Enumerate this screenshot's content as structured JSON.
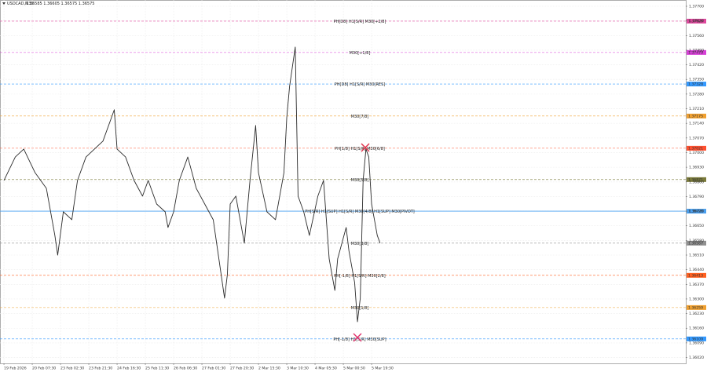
{
  "chart_data": {
    "type": "line",
    "title": "USDCAD,M30",
    "subtitle": "1.36585 1.36605 1.36575 1.36575",
    "color": "#2a2a2a",
    "grid": true,
    "x": [
      0,
      4,
      7,
      11,
      15,
      18,
      19,
      21,
      24,
      26,
      29,
      32,
      35,
      38,
      39,
      40,
      43,
      46,
      49,
      51,
      54,
      57,
      58,
      60,
      62,
      65,
      68,
      71,
      74,
      76,
      78,
      79,
      80,
      82,
      85,
      87,
      89,
      90,
      93,
      96,
      99,
      100,
      101,
      103,
      104,
      106,
      108,
      111,
      113,
      115,
      117,
      118,
      121,
      122,
      124,
      125,
      126,
      127,
      128,
      129,
      130,
      131,
      132,
      133
    ],
    "values": [
      1.36867,
      1.36979,
      1.37017,
      1.36904,
      1.36829,
      1.36604,
      1.3651,
      1.36717,
      1.36679,
      1.36867,
      1.36979,
      1.37017,
      1.37055,
      1.37167,
      1.37205,
      1.37017,
      1.36979,
      1.36867,
      1.36792,
      1.36867,
      1.36754,
      1.36717,
      1.36642,
      1.36717,
      1.36867,
      1.36979,
      1.36829,
      1.36754,
      1.36679,
      1.36492,
      1.36304,
      1.36417,
      1.36754,
      1.36792,
      1.36567,
      1.36867,
      1.3713,
      1.36904,
      1.36717,
      1.36679,
      1.36904,
      1.37167,
      1.37317,
      1.37505,
      1.36792,
      1.36717,
      1.36604,
      1.36792,
      1.36867,
      1.36492,
      1.36341,
      1.36492,
      1.36642,
      1.36529,
      1.36379,
      1.36191,
      1.36304,
      1.36867,
      1.37017,
      1.36979,
      1.36754,
      1.36679,
      1.36604,
      1.36567
    ],
    "xlim": [
      -1.4,
      241.1
    ],
    "xticks": [
      {
        "value": 0,
        "label": "19 Feb 2026"
      },
      {
        "value": 10,
        "label": "20 Feb 07:30"
      },
      {
        "value": 20,
        "label": "23 Feb 02:30"
      },
      {
        "value": 30,
        "label": "23 Feb 21:30"
      },
      {
        "value": 40,
        "label": "24 Feb 16:30"
      },
      {
        "value": 50,
        "label": "25 Feb 11:30"
      },
      {
        "value": 60,
        "label": "26 Feb 06:30"
      },
      {
        "value": 70,
        "label": "27 Feb 01:30"
      },
      {
        "value": 80,
        "label": "27 Feb 20:30"
      },
      {
        "value": 90,
        "label": "2 Mar 15:30"
      },
      {
        "value": 100,
        "label": "3 Mar 10:30"
      },
      {
        "value": 110,
        "label": "4 Mar 05:30"
      },
      {
        "value": 120,
        "label": "5 Mar 00:30"
      },
      {
        "value": 130,
        "label": "5 Mar 19:30"
      }
    ],
    "ylim": [
      1.35992,
      1.3773
    ],
    "yticks": [
      {
        "value": 1.377,
        "label": "1.37700"
      },
      {
        "value": 1.3763,
        "label": "1.37630"
      },
      {
        "value": 1.3756,
        "label": "1.37560"
      },
      {
        "value": 1.3749,
        "label": "1.37490"
      },
      {
        "value": 1.3742,
        "label": "1.37420"
      },
      {
        "value": 1.3735,
        "label": "1.37350"
      },
      {
        "value": 1.3728,
        "label": "1.37280"
      },
      {
        "value": 1.3721,
        "label": "1.37210"
      },
      {
        "value": 1.3714,
        "label": "1.37140"
      },
      {
        "value": 1.3707,
        "label": "1.37070"
      },
      {
        "value": 1.37,
        "label": "1.37000"
      },
      {
        "value": 1.3693,
        "label": "1.36930"
      },
      {
        "value": 1.3686,
        "label": "1.36860"
      },
      {
        "value": 1.3679,
        "label": "1.36790"
      },
      {
        "value": 1.3672,
        "label": "1.36720"
      },
      {
        "value": 1.3665,
        "label": "1.36650"
      },
      {
        "value": 1.3658,
        "label": "1.36580"
      },
      {
        "value": 1.3651,
        "label": "1.36510"
      },
      {
        "value": 1.3644,
        "label": "1.36440"
      },
      {
        "value": 1.3637,
        "label": "1.36370"
      },
      {
        "value": 1.363,
        "label": "1.36300"
      },
      {
        "value": 1.3623,
        "label": "1.36230"
      },
      {
        "value": 1.3616,
        "label": "1.36160"
      },
      {
        "value": 1.3609,
        "label": "1.36090"
      },
      {
        "value": 1.3602,
        "label": "1.36020"
      }
    ],
    "levels": [
      {
        "name": "PH[D8] H1[S/R] M30[+2/8]",
        "color": "#e0479e",
        "value": 1.37629,
        "value_label": "1.37629"
      },
      {
        "name": "M30[+1/8]",
        "color": "#d63fd6",
        "value": 1.37479,
        "value_label": "1.37479"
      },
      {
        "name": "PH[D8] H1[S/R] M30[RES]",
        "color": "#3399ff",
        "value": 1.37328,
        "value_label": "1.37328"
      },
      {
        "name": "M30[7/8]",
        "color": "#f0a030",
        "value": 1.37175,
        "value_label": "1.37175"
      },
      {
        "name": "PH[1/8] H1[S/R] M30[6/8]",
        "color": "#ff5030",
        "value": 1.37021,
        "value_label": "1.37021"
      },
      {
        "name": "M30[5/8]",
        "color": "#7a7a3a",
        "value": 1.36871,
        "value_label": "1.36871"
      },
      {
        "name": "PH[S/R] H1[SUP] H1[S/R] M30[4/8] H1[SUP] M30[PIVOT]",
        "color": "#4aa0f0",
        "value": 1.3672,
        "value_label": "1.36720"
      },
      {
        "name": "M30[3/8]",
        "color": "#909090",
        "value": 1.36567,
        "value_label": "1.36567"
      },
      {
        "name": "PH[-1/8] H1[S/R] M30[2/8]",
        "color": "#ff6020",
        "value": 1.36413,
        "value_label": "1.36413"
      },
      {
        "name": "M30[1/8]",
        "color": "#f0a030",
        "value": 1.36259,
        "value_label": "1.36259"
      },
      {
        "name": "PH[-1/8] H1[S/R] M30[SUP]",
        "color": "#3399ff",
        "value": 1.36109,
        "value_label": "1.36109"
      }
    ]
  }
}
